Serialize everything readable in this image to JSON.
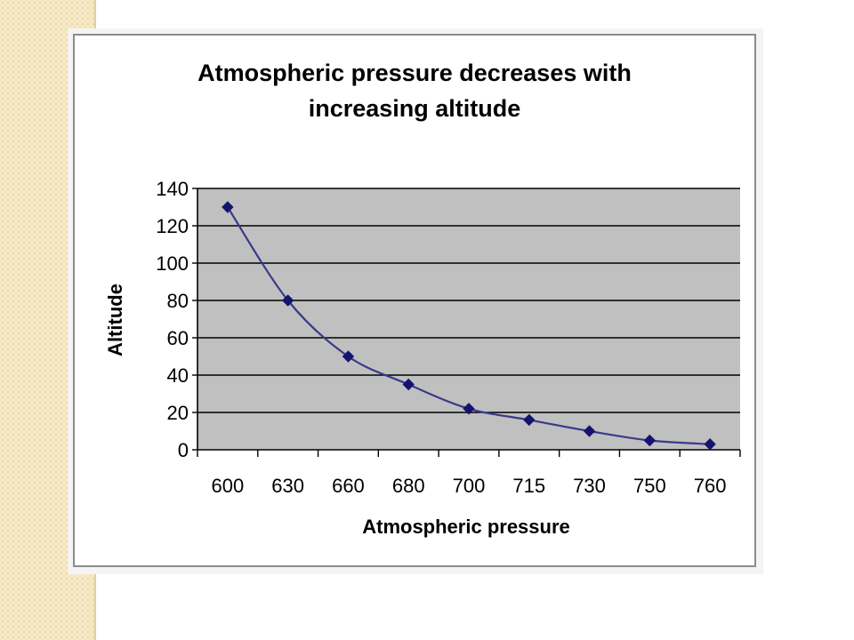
{
  "chart_data": {
    "type": "line",
    "title_lines": [
      "Atmospheric pressure decreases with",
      "increasing altitude"
    ],
    "xlabel": "Atmospheric pressure",
    "ylabel": "Altitude",
    "categories": [
      "600",
      "630",
      "660",
      "680",
      "700",
      "715",
      "730",
      "750",
      "760"
    ],
    "series": [
      {
        "values": [
          130,
          80,
          50,
          35,
          22,
          16,
          10,
          5,
          3
        ]
      }
    ],
    "ylim": [
      0,
      140
    ],
    "yticks": [
      "0",
      "20",
      "40",
      "60",
      "80",
      "100",
      "120",
      "140"
    ],
    "grid": "horizontal",
    "legend": "none",
    "colors": {
      "plot_background": "#c0c0c0",
      "gridline": "#000000",
      "series_line": "#3a3a8c",
      "marker": "#14146e",
      "side_strip": "#f6e9c6",
      "frame_border": "#8c8c8c"
    }
  }
}
